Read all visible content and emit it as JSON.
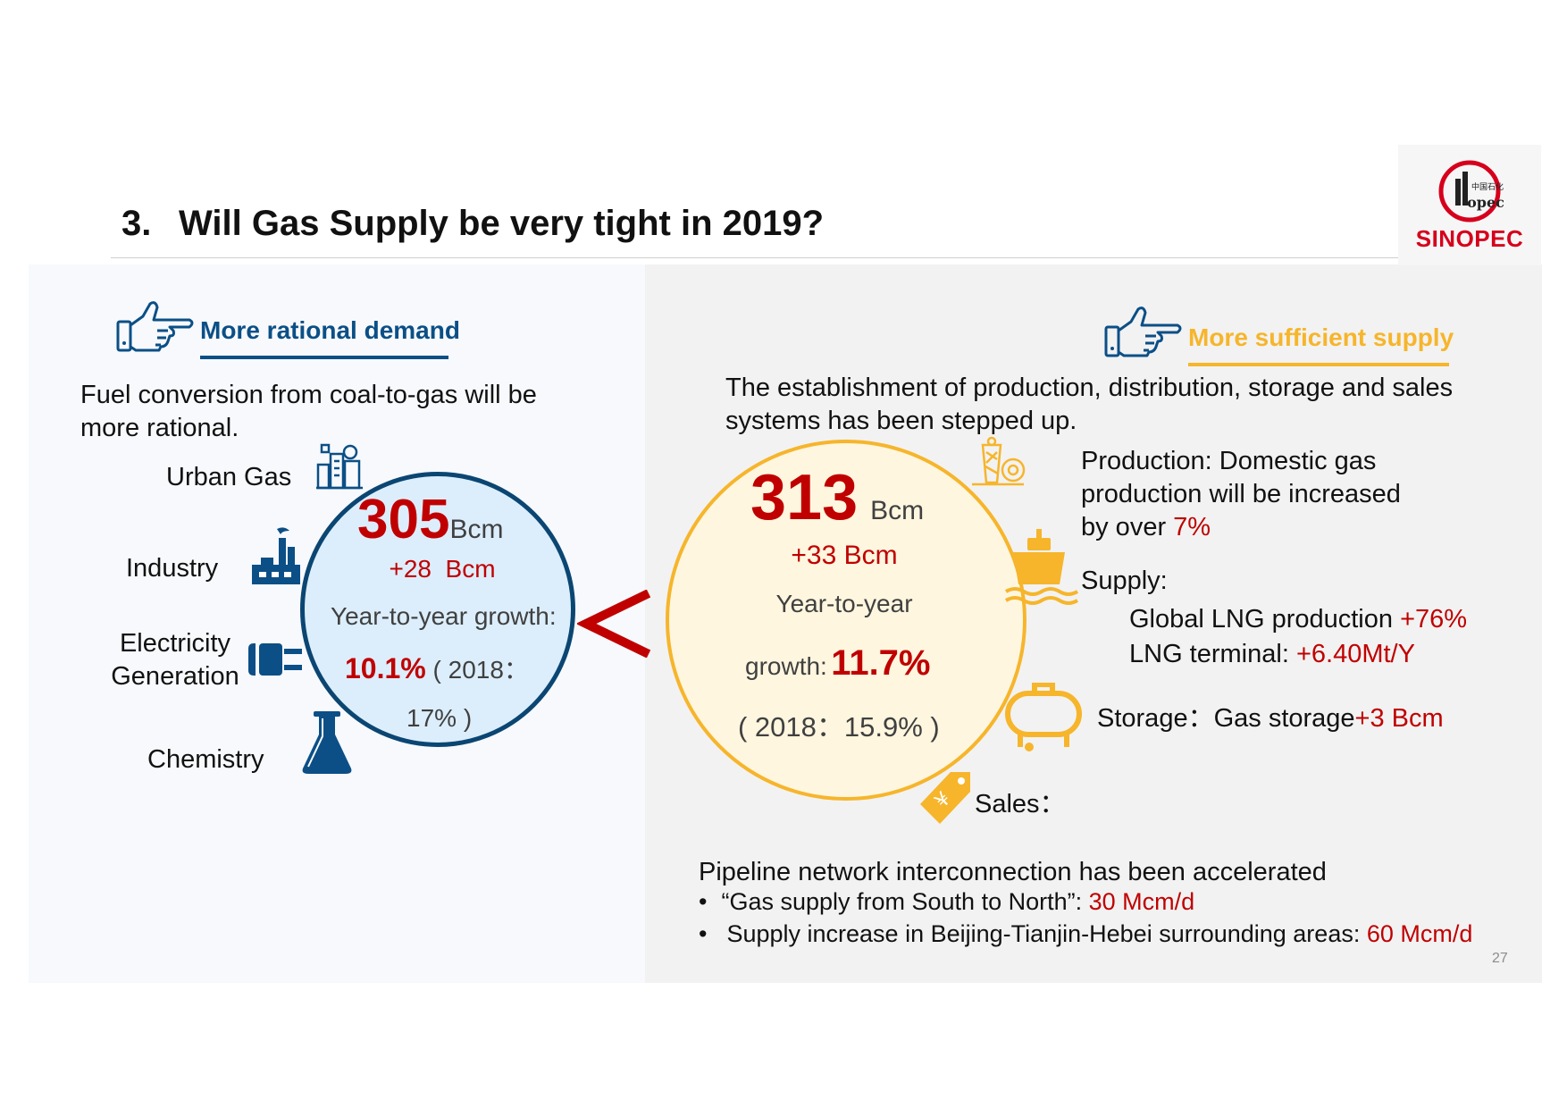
{
  "header": {
    "number": "3.",
    "title_main": "Will Gas Supply be very tight in 2019",
    "title_q": "?"
  },
  "logo": {
    "brand": "SINOPEC",
    "mark_text": "中国石化 Sinopec"
  },
  "left": {
    "heading": "More rational demand",
    "intro_line1": "Fuel conversion from coal-to-gas will be",
    "intro_line2": "more rational.",
    "sectors": {
      "urban_gas": "Urban Gas",
      "industry": "Industry",
      "electricity_line1": "Electricity",
      "electricity_line2": "Generation",
      "chemistry": "Chemistry"
    },
    "circle": {
      "value": "305",
      "unit": "Bcm",
      "increase": "+28  Bcm",
      "growth_label": "Year-to-year growth:",
      "growth_value": "10.1%",
      "prev_open": "( 2018：",
      "prev_close": "17% )"
    }
  },
  "comparison_symbol": "<",
  "right": {
    "heading": "More sufficient supply",
    "intro_line1": "The establishment of production, distribution, storage and sales",
    "intro_line2": "systems has been stepped up.",
    "circle": {
      "value": "313",
      "unit": "Bcm",
      "increase": "+33 Bcm",
      "growth_label1": "Year-to-year",
      "growth_label2": "growth:",
      "growth_value": "11.7%",
      "prev": "( 2018：15.9% )"
    },
    "production": {
      "line1": "Production: Domestic gas",
      "line2": "production will be increased",
      "line3_prefix": "by over ",
      "line3_value": "7%"
    },
    "supply": {
      "label": "Supply:",
      "lng_prod_label": "Global LNG production ",
      "lng_prod_value": "+76%",
      "lng_term_label": "LNG terminal: ",
      "lng_term_value": "+6.40Mt/Y"
    },
    "storage": {
      "label": "Storage：Gas storage",
      "value": "+3 Bcm"
    },
    "sales": {
      "label": "Sales："
    },
    "pipeline": {
      "heading": "Pipeline network interconnection has been accelerated",
      "bullet_char": "•",
      "b1_label": "“Gas supply from South to North”: ",
      "b1_value": "30 Mcm/d",
      "b2_label": "Supply increase in Beijing-Tianjin-Hebei surrounding areas: ",
      "b2_value": "60 Mcm/d"
    }
  },
  "page_number": "27",
  "colors": {
    "navy": "#0b4f86",
    "gold": "#f6b52b",
    "red": "#c00000",
    "brand_red": "#d6001c"
  }
}
